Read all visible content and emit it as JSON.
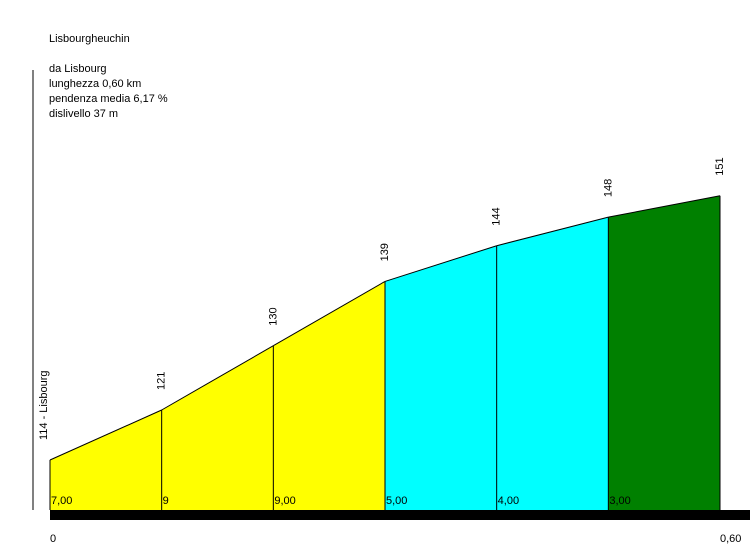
{
  "chart_data": {
    "type": "area",
    "title": "Lisbourgheuchin",
    "info": [
      "da Lisbourg",
      "lunghezza 0,60 km",
      "pendenza media 6,17 %",
      "dislivello 37 m"
    ],
    "start_label": "114 - Lisbourg",
    "x_start_label": "0",
    "x_end_label": "0,60",
    "x_km": [
      0,
      0.1,
      0.2,
      0.3,
      0.4,
      0.5,
      0.6
    ],
    "elevations": [
      114,
      121,
      130,
      139,
      144,
      148,
      151
    ],
    "elevation_labels": [
      "121",
      "130",
      "139",
      "144",
      "148",
      "151"
    ],
    "gradient_labels": [
      "7,00",
      "9",
      "9,00",
      "5,00",
      "4,00",
      "3,00"
    ],
    "segment_colors": [
      "#ffff00",
      "#ffff00",
      "#ffff00",
      "#00ffff",
      "#00ffff",
      "#008000"
    ],
    "ylim": [
      100,
      160
    ]
  }
}
